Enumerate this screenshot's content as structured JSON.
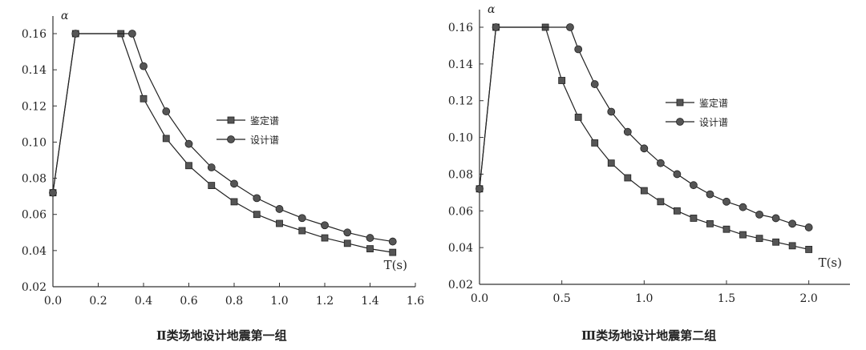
{
  "chart_data": [
    {
      "type": "line",
      "title": "Ⅱ类场地设计地震第一组",
      "xlabel": "T(s)",
      "ylabel": "α",
      "xlim": [
        0.0,
        1.6
      ],
      "ylim": [
        0.02,
        0.16
      ],
      "xticks": [
        "0.0",
        "0.2",
        "0.4",
        "0.6",
        "0.8",
        "1.0",
        "1.2",
        "1.4",
        "1.6"
      ],
      "yticks": [
        "0.02",
        "0.04",
        "0.06",
        "0.08",
        "0.10",
        "0.12",
        "0.14",
        "0.16"
      ],
      "grid": false,
      "legend_position": "center-right",
      "series": [
        {
          "name": "鉴定谱",
          "marker": "square",
          "x": [
            0.0,
            0.1,
            0.3,
            0.4,
            0.5,
            0.6,
            0.7,
            0.8,
            0.9,
            1.0,
            1.1,
            1.2,
            1.3,
            1.4,
            1.5
          ],
          "y": [
            0.072,
            0.16,
            0.16,
            0.124,
            0.102,
            0.087,
            0.076,
            0.067,
            0.06,
            0.055,
            0.051,
            0.047,
            0.044,
            0.041,
            0.039
          ]
        },
        {
          "name": "设计谱",
          "marker": "circle",
          "x": [
            0.0,
            0.1,
            0.35,
            0.4,
            0.5,
            0.6,
            0.7,
            0.8,
            0.9,
            1.0,
            1.1,
            1.2,
            1.3,
            1.4,
            1.5
          ],
          "y": [
            0.072,
            0.16,
            0.16,
            0.142,
            0.117,
            0.099,
            0.086,
            0.077,
            0.069,
            0.063,
            0.058,
            0.054,
            0.05,
            0.047,
            0.045
          ]
        }
      ]
    },
    {
      "type": "line",
      "title": "Ⅲ类场地设计地震第二组",
      "xlabel": "T(s)",
      "ylabel": "α",
      "xlim": [
        0.0,
        2.25
      ],
      "ylim": [
        0.02,
        0.16
      ],
      "xticks": [
        "0.0",
        "0.5",
        "1.0",
        "1.5",
        "2.0"
      ],
      "yticks": [
        "0.02",
        "0.04",
        "0.06",
        "0.08",
        "0.10",
        "0.12",
        "0.14",
        "0.16"
      ],
      "grid": false,
      "legend_position": "center-right",
      "series": [
        {
          "name": "鉴定谱",
          "marker": "square",
          "x": [
            0.0,
            0.1,
            0.4,
            0.5,
            0.6,
            0.7,
            0.8,
            0.9,
            1.0,
            1.1,
            1.2,
            1.3,
            1.4,
            1.5,
            1.6,
            1.7,
            1.8,
            1.9,
            2.0
          ],
          "y": [
            0.072,
            0.16,
            0.16,
            0.131,
            0.111,
            0.097,
            0.086,
            0.078,
            0.071,
            0.065,
            0.06,
            0.056,
            0.053,
            0.05,
            0.047,
            0.045,
            0.043,
            0.041,
            0.039
          ]
        },
        {
          "name": "设计谱",
          "marker": "circle",
          "x": [
            0.0,
            0.1,
            0.55,
            0.6,
            0.7,
            0.8,
            0.9,
            1.0,
            1.1,
            1.2,
            1.3,
            1.4,
            1.5,
            1.6,
            1.7,
            1.8,
            1.9,
            2.0
          ],
          "y": [
            0.072,
            0.16,
            0.16,
            0.148,
            0.129,
            0.114,
            0.103,
            0.094,
            0.086,
            0.08,
            0.074,
            0.069,
            0.065,
            0.062,
            0.058,
            0.056,
            0.053,
            0.051
          ]
        }
      ]
    }
  ]
}
